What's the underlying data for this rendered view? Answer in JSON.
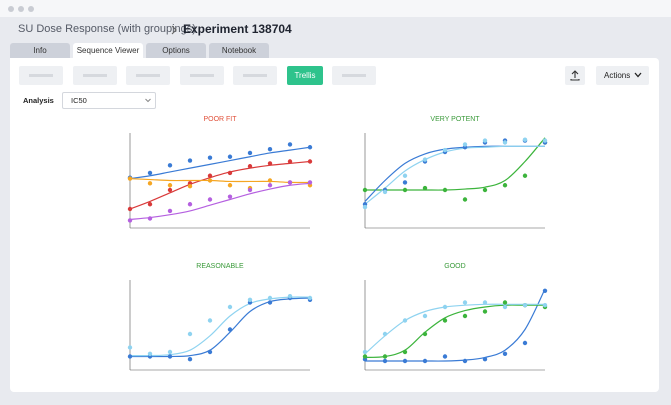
{
  "header": {
    "breadcrumb": "SU Dose Response (with groupings)",
    "title": "Experiment 138704"
  },
  "tabs": [
    "Info",
    "Sequence Viewer",
    "Options",
    "Notebook"
  ],
  "toolbar": {
    "active_button": "Trellis",
    "actions": "Actions"
  },
  "analysis": {
    "label": "Analysis",
    "value": "IC50"
  },
  "chart_data": [
    {
      "type": "scatter",
      "title": "POOR FIT",
      "title_color": "#e0503a",
      "xlim": [
        0,
        9
      ],
      "ylim": [
        0,
        100
      ],
      "x": [
        0,
        1,
        2,
        3,
        4,
        5,
        6,
        7,
        8,
        9
      ],
      "fit_x": [
        0,
        1,
        2,
        3,
        4,
        5,
        6,
        7,
        8,
        9
      ],
      "series": [
        {
          "color": "#3a7bd5",
          "values": [
            53,
            58,
            66,
            71,
            74,
            75,
            79,
            83,
            88,
            85
          ],
          "fit_values": [
            52,
            55,
            59,
            63,
            67,
            71,
            75,
            79,
            82,
            85
          ]
        },
        {
          "color": "#d93a3a",
          "values": [
            20,
            25,
            40,
            47,
            55,
            58,
            65,
            68,
            70,
            70
          ],
          "fit_values": [
            20,
            28,
            37,
            46,
            53,
            59,
            63,
            66,
            68,
            70
          ]
        },
        {
          "color": "#f5a623",
          "values": [
            52,
            47,
            45,
            44,
            50,
            45,
            42,
            50,
            48,
            45
          ],
          "fit_values": [
            52,
            51,
            50,
            50,
            50,
            49,
            49,
            49,
            48,
            48
          ]
        },
        {
          "color": "#b560e0",
          "values": [
            8,
            10,
            18,
            25,
            30,
            33,
            40,
            45,
            48,
            48
          ],
          "fit_values": [
            9,
            11,
            14,
            18,
            24,
            30,
            36,
            41,
            45,
            47
          ]
        }
      ]
    },
    {
      "type": "scatter",
      "title": "VERY POTENT",
      "title_color": "#3a9a3a",
      "xlim": [
        0,
        9
      ],
      "ylim": [
        0,
        100
      ],
      "x": [
        0,
        1,
        2,
        3,
        4,
        5,
        6,
        7,
        8,
        9
      ],
      "fit_x": [
        0,
        1,
        2,
        3,
        4,
        5,
        6,
        7,
        8,
        9
      ],
      "series": [
        {
          "color": "#3cb43c",
          "values": [
            40,
            40,
            40,
            42,
            40,
            30,
            40,
            45,
            55,
            90
          ],
          "fit_values": [
            40,
            40,
            40,
            40,
            40,
            41,
            43,
            50,
            70,
            95
          ]
        },
        {
          "color": "#3a7bd5",
          "values": [
            25,
            40,
            48,
            70,
            80,
            85,
            90,
            92,
            92,
            90
          ],
          "fit_values": [
            28,
            50,
            68,
            78,
            83,
            85,
            86,
            86,
            86,
            86
          ]
        },
        {
          "color": "#8fd3f0",
          "values": [
            22,
            38,
            55,
            72,
            82,
            88,
            92,
            90,
            93,
            92
          ],
          "fit_values": [
            25,
            42,
            60,
            72,
            80,
            84,
            85,
            86,
            86,
            86
          ]
        }
      ]
    },
    {
      "type": "scatter",
      "title": "REASONABLE",
      "title_color": "#3a9a3a",
      "xlim": [
        0,
        9
      ],
      "ylim": [
        0,
        100
      ],
      "x": [
        0,
        1,
        2,
        3,
        4,
        5,
        6,
        7,
        8,
        9
      ],
      "fit_x": [
        0,
        1,
        2,
        3,
        4,
        5,
        6,
        7,
        8,
        9
      ],
      "series": [
        {
          "color": "#3a7bd5",
          "values": [
            15,
            15,
            15,
            12,
            20,
            45,
            75,
            75,
            80,
            78
          ],
          "fit_values": [
            15,
            15,
            15,
            16,
            22,
            42,
            65,
            76,
            79,
            80
          ]
        },
        {
          "color": "#8fd3f0",
          "values": [
            25,
            18,
            20,
            40,
            55,
            70,
            78,
            80,
            82,
            80
          ],
          "fit_values": [
            16,
            16,
            17,
            22,
            38,
            60,
            74,
            79,
            81,
            81
          ]
        }
      ]
    },
    {
      "type": "scatter",
      "title": "GOOD",
      "title_color": "#3a9a3a",
      "xlim": [
        0,
        9
      ],
      "ylim": [
        0,
        100
      ],
      "x": [
        0,
        1,
        2,
        3,
        4,
        5,
        6,
        7,
        8,
        9
      ],
      "fit_x": [
        0,
        1,
        2,
        3,
        4,
        5,
        6,
        7,
        8,
        9
      ],
      "series": [
        {
          "color": "#3a7bd5",
          "values": [
            12,
            10,
            10,
            10,
            15,
            10,
            12,
            18,
            30,
            88
          ],
          "fit_values": [
            10,
            10,
            10,
            10,
            10,
            11,
            14,
            22,
            45,
            90
          ]
        },
        {
          "color": "#3cb43c",
          "values": [
            15,
            15,
            20,
            40,
            55,
            60,
            65,
            75,
            72,
            70
          ],
          "fit_values": [
            14,
            15,
            22,
            42,
            58,
            66,
            70,
            72,
            72,
            72
          ]
        },
        {
          "color": "#8fd3f0",
          "values": [
            20,
            40,
            55,
            60,
            70,
            75,
            75,
            70,
            72,
            72
          ],
          "fit_values": [
            18,
            38,
            55,
            65,
            70,
            72,
            73,
            73,
            73,
            73
          ]
        }
      ]
    }
  ]
}
